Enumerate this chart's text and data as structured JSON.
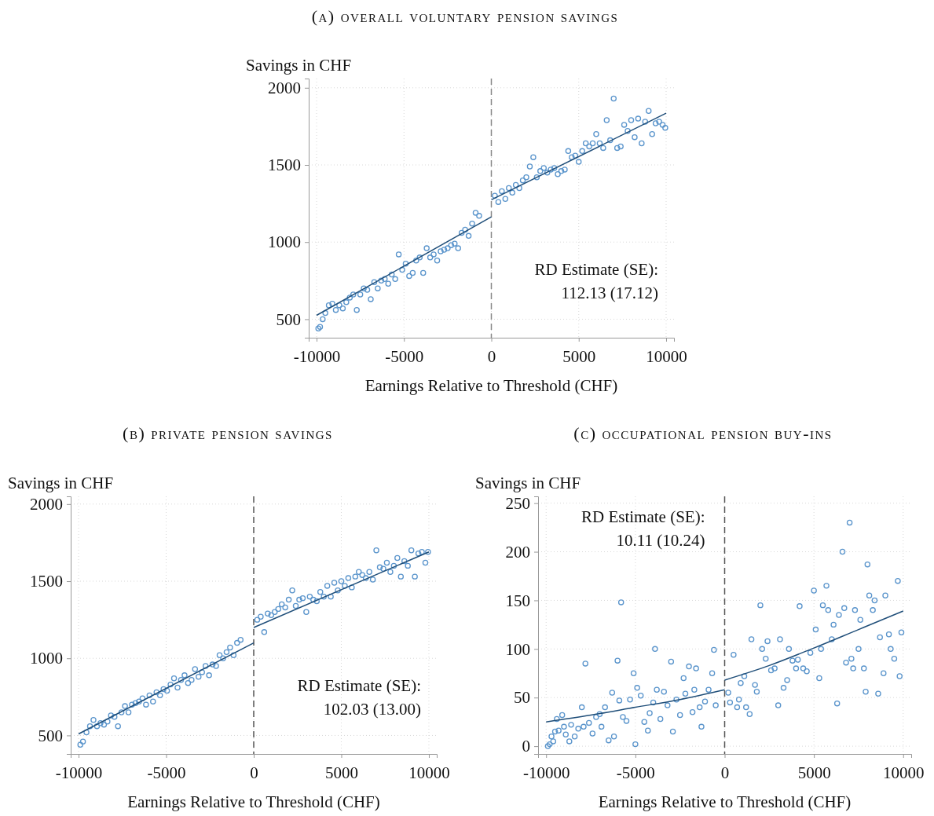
{
  "chart_data": [
    {
      "type": "scatter",
      "title": "(a) overall voluntary pension savings",
      "ylabel": "Savings in CHF",
      "xlabel": "Earnings Relative to Threshold (CHF)",
      "xlim": [
        -10450,
        10450
      ],
      "ylim": [
        380,
        2060
      ],
      "xticks": [
        -10000,
        -5000,
        0,
        5000,
        10000
      ],
      "yticks": [
        500,
        1000,
        1500,
        2000
      ],
      "grid": true,
      "annotations": [
        "RD Estimate (SE):",
        "112.13 (17.12)"
      ],
      "ref_lines": [
        {
          "axis": "x",
          "value": 0,
          "color": "#888888",
          "line_style": "dashed"
        }
      ],
      "series": [
        {
          "marker": "circle",
          "color": "#5b95cc",
          "x": [
            -9900,
            -9800,
            -9650,
            -9500,
            -9300,
            -9100,
            -8900,
            -8700,
            -8500,
            -8300,
            -8100,
            -7900,
            -7700,
            -7500,
            -7300,
            -7100,
            -6900,
            -6700,
            -6500,
            -6300,
            -6100,
            -5900,
            -5700,
            -5500,
            -5300,
            -5100,
            -4900,
            -4700,
            -4500,
            -4300,
            -4100,
            -3900,
            -3700,
            -3500,
            -3300,
            -3100,
            -2900,
            -2700,
            -2500,
            -2300,
            -2100,
            -1900,
            -1700,
            -1500,
            -1300,
            -1100,
            -900,
            -700
          ],
          "values": [
            440,
            450,
            500,
            540,
            590,
            600,
            560,
            590,
            570,
            610,
            640,
            660,
            560,
            660,
            700,
            690,
            630,
            740,
            700,
            750,
            760,
            730,
            790,
            760,
            920,
            820,
            860,
            780,
            800,
            880,
            900,
            800,
            960,
            900,
            920,
            880,
            940,
            950,
            960,
            980,
            990,
            960,
            1060,
            1080,
            1040,
            1120,
            1190,
            1170
          ]
        },
        {
          "marker": "circle",
          "color": "#5b95cc",
          "x": [
            200,
            400,
            600,
            800,
            1000,
            1200,
            1400,
            1600,
            1800,
            2000,
            2200,
            2400,
            2600,
            2800,
            3000,
            3200,
            3400,
            3600,
            3800,
            4000,
            4200,
            4400,
            4600,
            4800,
            5000,
            5200,
            5400,
            5600,
            5800,
            6000,
            6200,
            6400,
            6600,
            6800,
            7000,
            7200,
            7400,
            7600,
            7800,
            8000,
            8200,
            8400,
            8600,
            8800,
            9000,
            9200,
            9400,
            9600,
            9800,
            9950
          ],
          "values": [
            1300,
            1260,
            1330,
            1280,
            1350,
            1320,
            1370,
            1350,
            1400,
            1420,
            1490,
            1550,
            1420,
            1460,
            1480,
            1450,
            1470,
            1480,
            1440,
            1460,
            1470,
            1590,
            1550,
            1560,
            1520,
            1590,
            1640,
            1620,
            1640,
            1700,
            1640,
            1610,
            1790,
            1660,
            1930,
            1610,
            1620,
            1760,
            1720,
            1790,
            1680,
            1800,
            1640,
            1780,
            1850,
            1700,
            1770,
            1780,
            1760,
            1740
          ]
        },
        {
          "type": "line",
          "color": "#1f4e79",
          "x": [
            -10000,
            0
          ],
          "values": [
            525,
            1163
          ]
        },
        {
          "type": "line",
          "color": "#1f4e79",
          "x": [
            0,
            10000
          ],
          "values": [
            1274,
            1835
          ]
        }
      ]
    },
    {
      "type": "scatter",
      "title": "(b) private pension savings",
      "ylabel": "Savings in CHF",
      "xlabel": "Earnings Relative to Threshold (CHF)",
      "xlim": [
        -10450,
        10450
      ],
      "ylim": [
        380,
        2050
      ],
      "xticks": [
        -10000,
        -5000,
        0,
        5000,
        10000
      ],
      "yticks": [
        500,
        1000,
        1500,
        2000
      ],
      "grid": true,
      "annotations": [
        "RD Estimate (SE):",
        "102.03 (13.00)"
      ],
      "ref_lines": [
        {
          "axis": "x",
          "value": 0,
          "color": "#555555",
          "line_style": "dashed"
        }
      ],
      "series": [
        {
          "marker": "circle",
          "color": "#5b95cc",
          "x": [
            -9900,
            -9750,
            -9550,
            -9350,
            -9150,
            -8950,
            -8750,
            -8550,
            -8350,
            -8150,
            -7950,
            -7750,
            -7550,
            -7350,
            -7150,
            -6950,
            -6750,
            -6550,
            -6350,
            -6150,
            -5950,
            -5750,
            -5550,
            -5350,
            -5150,
            -4950,
            -4750,
            -4550,
            -4350,
            -4150,
            -3950,
            -3750,
            -3550,
            -3350,
            -3150,
            -2950,
            -2750,
            -2550,
            -2350,
            -2150,
            -1950,
            -1750,
            -1550,
            -1350,
            -1150,
            -950,
            -750
          ],
          "values": [
            440,
            460,
            520,
            560,
            600,
            560,
            580,
            570,
            590,
            630,
            620,
            560,
            650,
            690,
            650,
            700,
            710,
            720,
            740,
            700,
            760,
            720,
            780,
            760,
            800,
            790,
            830,
            870,
            810,
            860,
            890,
            840,
            860,
            930,
            880,
            910,
            950,
            890,
            960,
            950,
            1020,
            1000,
            1040,
            1070,
            1020,
            1100,
            1120
          ]
        },
        {
          "marker": "circle",
          "color": "#5b95cc",
          "x": [
            200,
            400,
            600,
            800,
            1000,
            1200,
            1400,
            1600,
            1800,
            2000,
            2200,
            2400,
            2600,
            2800,
            3000,
            3200,
            3400,
            3600,
            3800,
            4000,
            4200,
            4400,
            4600,
            4800,
            5000,
            5200,
            5400,
            5600,
            5800,
            6000,
            6200,
            6400,
            6600,
            6800,
            7000,
            7200,
            7400,
            7600,
            7800,
            8000,
            8200,
            8400,
            8600,
            8800,
            9000,
            9200,
            9400,
            9600,
            9800,
            9950
          ],
          "values": [
            1250,
            1270,
            1170,
            1290,
            1280,
            1300,
            1320,
            1350,
            1330,
            1380,
            1440,
            1340,
            1380,
            1390,
            1300,
            1400,
            1380,
            1370,
            1430,
            1400,
            1470,
            1400,
            1490,
            1440,
            1500,
            1470,
            1520,
            1460,
            1530,
            1560,
            1540,
            1520,
            1560,
            1510,
            1700,
            1590,
            1580,
            1620,
            1560,
            1600,
            1650,
            1530,
            1630,
            1600,
            1700,
            1530,
            1680,
            1690,
            1620,
            1690
          ]
        },
        {
          "type": "line",
          "color": "#1f4e79",
          "x": [
            -10000,
            0
          ],
          "values": [
            510,
            1100
          ]
        },
        {
          "type": "line",
          "color": "#1f4e79",
          "x": [
            0,
            10000
          ],
          "values": [
            1200,
            1690
          ]
        }
      ]
    },
    {
      "type": "scatter",
      "title": "(c) occupational pension buy-ins",
      "ylabel": "Savings in CHF",
      "xlabel": "Earnings Relative to Threshold (CHF)",
      "xlim": [
        -10450,
        10450
      ],
      "ylim": [
        -8,
        257
      ],
      "xticks": [
        -10000,
        -5000,
        0,
        5000,
        10000
      ],
      "yticks": [
        0,
        50,
        100,
        150,
        200,
        250
      ],
      "grid": true,
      "annotations": [
        "RD Estimate (SE):",
        "10.11 (10.24)"
      ],
      "ref_lines": [
        {
          "axis": "x",
          "value": 0,
          "color": "#555555",
          "line_style": "dashed"
        }
      ],
      "series": [
        {
          "marker": "circle",
          "color": "#5b95cc",
          "x": [
            -9900,
            -9800,
            -9700,
            -9600,
            -9500,
            -9400,
            -9300,
            -9100,
            -9000,
            -8900,
            -8700,
            -8600,
            -8400,
            -8200,
            -8000,
            -7900,
            -7800,
            -7600,
            -7400,
            -7200,
            -7000,
            -6900,
            -6700,
            -6500,
            -6300,
            -6200,
            -6000,
            -5900,
            -5800,
            -5700,
            -5500,
            -5300,
            -5100,
            -5000,
            -4900,
            -4700,
            -4500,
            -4300,
            -4200,
            -4000,
            -3900,
            -3800,
            -3600,
            -3400,
            -3200,
            -3000,
            -2900,
            -2700,
            -2500,
            -2300,
            -2200,
            -2000,
            -1800,
            -1700,
            -1600,
            -1400,
            -1300,
            -1100,
            -900,
            -700,
            -600,
            -500
          ],
          "values": [
            0,
            2,
            10,
            5,
            15,
            28,
            16,
            32,
            20,
            12,
            5,
            22,
            10,
            18,
            40,
            20,
            85,
            24,
            13,
            30,
            33,
            20,
            40,
            6,
            55,
            10,
            88,
            47,
            148,
            30,
            26,
            48,
            75,
            2,
            60,
            52,
            25,
            16,
            34,
            45,
            100,
            58,
            28,
            56,
            42,
            87,
            15,
            48,
            32,
            70,
            54,
            82,
            35,
            58,
            80,
            40,
            20,
            46,
            58,
            75,
            99,
            42
          ]
        },
        {
          "marker": "circle",
          "color": "#5b95cc",
          "x": [
            200,
            300,
            500,
            700,
            800,
            900,
            1100,
            1200,
            1400,
            1500,
            1700,
            1800,
            2000,
            2100,
            2300,
            2400,
            2600,
            2800,
            3000,
            3100,
            3300,
            3500,
            3600,
            3800,
            4000,
            4100,
            4200,
            4400,
            4600,
            4800,
            5000,
            5100,
            5300,
            5400,
            5500,
            5700,
            5800,
            6000,
            6100,
            6300,
            6400,
            6600,
            6700,
            6800,
            7000,
            7100,
            7200,
            7300,
            7500,
            7600,
            7800,
            7900,
            8000,
            8100,
            8300,
            8400,
            8600,
            8700,
            8900,
            9000,
            9200,
            9300,
            9500,
            9700,
            9800,
            9900
          ],
          "values": [
            55,
            45,
            94,
            40,
            48,
            65,
            72,
            40,
            33,
            110,
            63,
            56,
            145,
            100,
            90,
            108,
            78,
            80,
            42,
            110,
            60,
            68,
            100,
            88,
            80,
            89,
            144,
            80,
            77,
            96,
            160,
            120,
            70,
            100,
            145,
            165,
            140,
            110,
            125,
            44,
            135,
            200,
            142,
            86,
            230,
            90,
            80,
            140,
            100,
            130,
            80,
            56,
            187,
            155,
            140,
            150,
            54,
            112,
            75,
            155,
            115,
            100,
            90,
            170,
            72,
            117
          ]
        },
        {
          "type": "line",
          "color": "#1f4e79",
          "x": [
            -10000,
            -7500,
            -5000,
            -2500,
            0
          ],
          "values": [
            25,
            32,
            40,
            48,
            58
          ]
        },
        {
          "type": "line",
          "color": "#1f4e79",
          "x": [
            0,
            2500,
            5000,
            7500,
            10000
          ],
          "values": [
            68,
            83,
            101,
            120,
            139
          ]
        }
      ]
    }
  ]
}
